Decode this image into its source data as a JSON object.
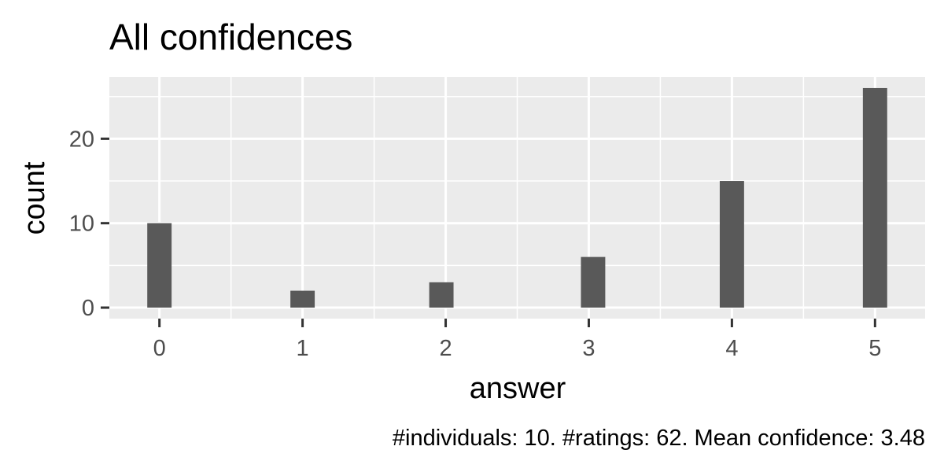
{
  "chart_data": {
    "type": "bar",
    "title": "All confidences",
    "xlabel": "answer",
    "ylabel": "count",
    "caption": "#individuals: 10. #ratings: 62. Mean confidence: 3.48",
    "x": [
      0,
      1,
      1.97,
      3.03,
      4,
      5
    ],
    "values": [
      10,
      2,
      3,
      6,
      15,
      26
    ],
    "x_ticks": [
      0,
      1,
      2,
      3,
      4,
      5
    ],
    "x_tick_labels": [
      "0",
      "1",
      "2",
      "3",
      "4",
      "5"
    ],
    "y_ticks": [
      0,
      10,
      20
    ],
    "y_tick_labels": [
      "0",
      "10",
      "20"
    ],
    "xlim": [
      -0.35,
      5.35
    ],
    "ylim": [
      -1.3,
      27.3
    ],
    "grid": true,
    "colors": {
      "bar": "#595959",
      "panel": "#ebebeb",
      "grid": "#ffffff",
      "tick": "#333333"
    }
  }
}
